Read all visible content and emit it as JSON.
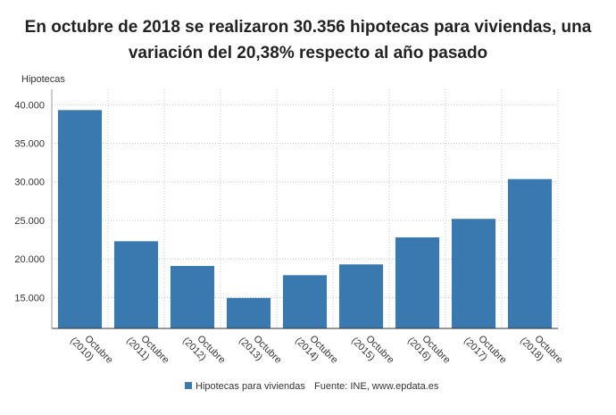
{
  "chart_data": {
    "type": "bar",
    "title_lines": [
      "En octubre de 2018 se realizaron 30.356 hipotecas para viviendas, una",
      "variación del 20,38% respecto al año pasado"
    ],
    "ylabel": "Hipotecas",
    "xlabel": "",
    "categories": [
      "Octubre (2010)",
      "Octubre (2011)",
      "Octubre (2012)",
      "Octubre (2013)",
      "Octubre (2014)",
      "Octubre (2015)",
      "Octubre (2016)",
      "Octubre (2017)",
      "Octubre (2018)"
    ],
    "category_lines": [
      [
        "Octubre",
        "(2010)"
      ],
      [
        "Octubre",
        "(2011)"
      ],
      [
        "Octubre",
        "(2012)"
      ],
      [
        "Octubre",
        "(2013)"
      ],
      [
        "Octubre",
        "(2014)"
      ],
      [
        "Octubre",
        "(2015)"
      ],
      [
        "Octubre",
        "(2016)"
      ],
      [
        "Octubre",
        "(2017)"
      ],
      [
        "Octubre",
        "(2018)"
      ]
    ],
    "series": [
      {
        "name": "Hipotecas para viviendas",
        "color": "#3a78b0",
        "values": [
          39300,
          22300,
          19100,
          14950,
          17900,
          19300,
          22800,
          25200,
          30356
        ]
      }
    ],
    "ylim": [
      11000,
      42000
    ],
    "yticks": [
      15000,
      20000,
      25000,
      30000,
      35000,
      40000
    ],
    "ytick_labels": [
      "15.000",
      "20.000",
      "25.000",
      "30.000",
      "35.000",
      "40.000"
    ],
    "grid": true,
    "legend_position": "bottom",
    "source": "Fuente: INE, www.epdata.es"
  }
}
